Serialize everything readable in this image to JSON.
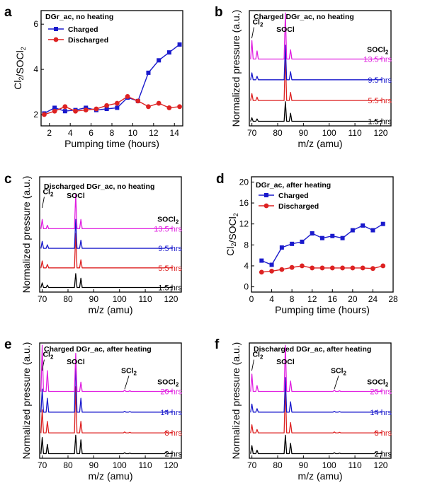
{
  "figure": {
    "colors": {
      "black": "#000000",
      "red": "#dd2222",
      "blue": "#1a1acc",
      "magenta": "#e020e0"
    }
  },
  "chart_data": [
    {
      "id": "a",
      "type": "line",
      "letter": "a",
      "title": "DGr_ac, no heating",
      "xlabel": "Pumping time (hours)",
      "ylabel": "Cl2/SOCl2",
      "xlim": [
        1.2,
        14.8
      ],
      "ylim": [
        1.5,
        6.6
      ],
      "xticks": [
        2,
        4,
        6,
        8,
        10,
        12,
        14
      ],
      "yticks": [
        2,
        4,
        6
      ],
      "series": [
        {
          "name": "Charged",
          "color": "#1a1acc",
          "marker": "square",
          "x": [
            1.5,
            2.5,
            3.5,
            4.5,
            5.5,
            6.5,
            7.5,
            8.5,
            9.5,
            10.5,
            11.5,
            12.5,
            13.5,
            14.5
          ],
          "y": [
            2.05,
            2.3,
            2.15,
            2.2,
            2.3,
            2.2,
            2.25,
            2.3,
            2.75,
            2.6,
            3.85,
            4.4,
            4.75,
            5.1
          ]
        },
        {
          "name": "Discharged",
          "color": "#dd2222",
          "marker": "circle",
          "x": [
            1.5,
            2.5,
            3.5,
            4.5,
            5.5,
            6.5,
            7.5,
            8.5,
            9.5,
            10.5,
            11.5,
            12.5,
            13.5,
            14.5
          ],
          "y": [
            2.0,
            2.15,
            2.35,
            2.15,
            2.2,
            2.25,
            2.4,
            2.5,
            2.8,
            2.6,
            2.35,
            2.5,
            2.3,
            2.35
          ]
        }
      ]
    },
    {
      "id": "b",
      "type": "line",
      "letter": "b",
      "title": "Charged DGr_ac, no heating",
      "xlabel": "m/z (amu)",
      "ylabel": "Normalized pressure (a.u.)",
      "xlim": [
        69,
        124
      ],
      "xticks": [
        70,
        80,
        90,
        100,
        110,
        120
      ],
      "ylim": [
        0,
        100
      ],
      "peaks_mz": [
        70,
        72,
        83,
        85,
        118,
        120
      ],
      "peak_labels": [
        {
          "text": "Cl",
          "sub": "2",
          "mz": 70.5
        },
        {
          "text": "SOCl",
          "sub": "",
          "mz": 83
        },
        {
          "text": "SOCl",
          "sub": "2",
          "mz": 118
        }
      ],
      "traces": [
        {
          "label": "1.5 hrs",
          "color": "#000000",
          "offset": 4,
          "heights": [
            3,
            2,
            17,
            7,
            1,
            0.5
          ]
        },
        {
          "label": "5.5 hrs",
          "color": "#dd2222",
          "offset": 22,
          "heights": [
            6,
            3,
            40,
            7,
            1,
            0.5
          ]
        },
        {
          "label": "9.5 hrs",
          "color": "#1a1acc",
          "offset": 40,
          "heights": [
            6,
            3,
            30,
            7,
            1,
            0.5
          ]
        },
        {
          "label": "13.5 hrs",
          "color": "#e020e0",
          "offset": 58,
          "heights": [
            16,
            7,
            40,
            8,
            1,
            0.5
          ]
        }
      ]
    },
    {
      "id": "c",
      "type": "line",
      "letter": "c",
      "title": "Discharged DGr_ac, no heating",
      "xlabel": "m/z (amu)",
      "ylabel": "Normalized pressure (a.u.)",
      "xlim": [
        69,
        124
      ],
      "xticks": [
        70,
        80,
        90,
        100,
        110,
        120
      ],
      "ylim": [
        0,
        100
      ],
      "peaks_mz": [
        70,
        72,
        83,
        85,
        118,
        120
      ],
      "peak_labels": [
        {
          "text": "Cl",
          "sub": "2",
          "mz": 70.5
        },
        {
          "text": "SOCl",
          "sub": "",
          "mz": 83
        },
        {
          "text": "SOCl",
          "sub": "2",
          "mz": 118
        }
      ],
      "traces": [
        {
          "label": "1.5 hrs",
          "color": "#000000",
          "offset": 4,
          "heights": [
            4,
            2,
            12,
            8,
            1,
            0.5
          ]
        },
        {
          "label": "5.5 hrs",
          "color": "#dd2222",
          "offset": 21,
          "heights": [
            6,
            3,
            30,
            7,
            1,
            0.5
          ]
        },
        {
          "label": "9.5 hrs",
          "color": "#1a1acc",
          "offset": 38,
          "heights": [
            6,
            3,
            25,
            7,
            1,
            0.5
          ]
        },
        {
          "label": "13.5 hrs",
          "color": "#e020e0",
          "offset": 55,
          "heights": [
            8,
            3,
            30,
            8,
            1,
            0.5
          ]
        }
      ]
    },
    {
      "id": "d",
      "type": "line",
      "letter": "d",
      "title": "DGr_ac, after heating",
      "xlabel": "Pumping time (hours)",
      "ylabel": "Cl2/SOCl2",
      "xlim": [
        0,
        28
      ],
      "ylim": [
        -1,
        21
      ],
      "xticks": [
        0,
        4,
        8,
        12,
        16,
        20,
        24,
        28
      ],
      "yticks": [
        0,
        4,
        8,
        12,
        16,
        20
      ],
      "series": [
        {
          "name": "Charged",
          "color": "#1a1acc",
          "marker": "square",
          "x": [
            2,
            4,
            6,
            8,
            10,
            12,
            14,
            16,
            18,
            20,
            22,
            24,
            26
          ],
          "y": [
            5.0,
            4.2,
            7.5,
            8.2,
            8.6,
            10.2,
            9.3,
            9.7,
            9.3,
            10.8,
            11.7,
            10.8,
            12.0
          ]
        },
        {
          "name": "Discharged",
          "color": "#dd2222",
          "marker": "circle",
          "x": [
            2,
            4,
            6,
            8,
            10,
            12,
            14,
            16,
            18,
            20,
            22,
            24,
            26
          ],
          "y": [
            2.8,
            3.0,
            3.3,
            3.7,
            4.0,
            3.6,
            3.6,
            3.6,
            3.6,
            3.6,
            3.6,
            3.5,
            4.0
          ]
        }
      ]
    },
    {
      "id": "e",
      "type": "line",
      "letter": "e",
      "title": "Charged DGr_ac, after heating",
      "xlabel": "m/z (amu)",
      "ylabel": "Normalized pressure (a.u.)",
      "xlim": [
        69,
        124
      ],
      "xticks": [
        70,
        80,
        90,
        100,
        110,
        120
      ],
      "ylim": [
        0,
        100
      ],
      "peaks_mz": [
        70,
        72,
        83,
        85,
        102,
        104,
        118,
        120
      ],
      "peak_labels": [
        {
          "text": "Cl",
          "sub": "2",
          "mz": 70.5
        },
        {
          "text": "SOCl",
          "sub": "",
          "mz": 83
        },
        {
          "text": "SCl",
          "sub": "2",
          "mz": 102
        },
        {
          "text": "SOCl",
          "sub": "2",
          "mz": 118
        }
      ],
      "traces": [
        {
          "label": "2 hrs",
          "color": "#000000",
          "offset": 4,
          "heights": [
            14,
            8,
            16,
            12,
            0.8,
            0.5,
            1.5,
            0.5
          ]
        },
        {
          "label": "8 hrs",
          "color": "#dd2222",
          "offset": 22,
          "heights": [
            20,
            10,
            40,
            10,
            0.8,
            0.5,
            1.5,
            0.5
          ]
        },
        {
          "label": "14 hrs",
          "color": "#1a1acc",
          "offset": 40,
          "heights": [
            20,
            12,
            45,
            12,
            0.8,
            0.5,
            1.5,
            0.5
          ]
        },
        {
          "label": "20 hrs",
          "color": "#e020e0",
          "offset": 58,
          "heights": [
            40,
            18,
            33,
            8,
            1,
            0.5,
            1.5,
            0.5
          ]
        }
      ]
    },
    {
      "id": "f",
      "type": "line",
      "letter": "f",
      "title": "Discharged DGr_ac, after heating",
      "xlabel": "m/z (amu)",
      "ylabel": "Normalized pressure (a.u.)",
      "xlim": [
        69,
        124
      ],
      "xticks": [
        70,
        80,
        90,
        100,
        110,
        120
      ],
      "ylim": [
        0,
        100
      ],
      "peaks_mz": [
        70,
        72,
        83,
        85,
        102,
        104,
        118,
        120
      ],
      "peak_labels": [
        {
          "text": "Cl",
          "sub": "2",
          "mz": 70.5
        },
        {
          "text": "SOCl",
          "sub": "",
          "mz": 83
        },
        {
          "text": "SCl",
          "sub": "2",
          "mz": 102
        },
        {
          "text": "SOCl",
          "sub": "2",
          "mz": 118
        }
      ],
      "traces": [
        {
          "label": "2 hrs",
          "color": "#000000",
          "offset": 4,
          "heights": [
            7,
            3,
            16,
            9,
            0.8,
            0.5,
            1.2,
            0.5
          ]
        },
        {
          "label": "8 hrs",
          "color": "#dd2222",
          "offset": 22,
          "heights": [
            7,
            3,
            40,
            9,
            0.8,
            0.5,
            1.2,
            0.5
          ]
        },
        {
          "label": "14 hrs",
          "color": "#1a1acc",
          "offset": 40,
          "heights": [
            7,
            3,
            30,
            9,
            0.8,
            0.5,
            1.2,
            0.5
          ]
        },
        {
          "label": "20 hrs",
          "color": "#e020e0",
          "offset": 58,
          "heights": [
            15,
            5,
            40,
            9,
            1,
            0.5,
            1.2,
            0.5
          ]
        }
      ]
    }
  ]
}
